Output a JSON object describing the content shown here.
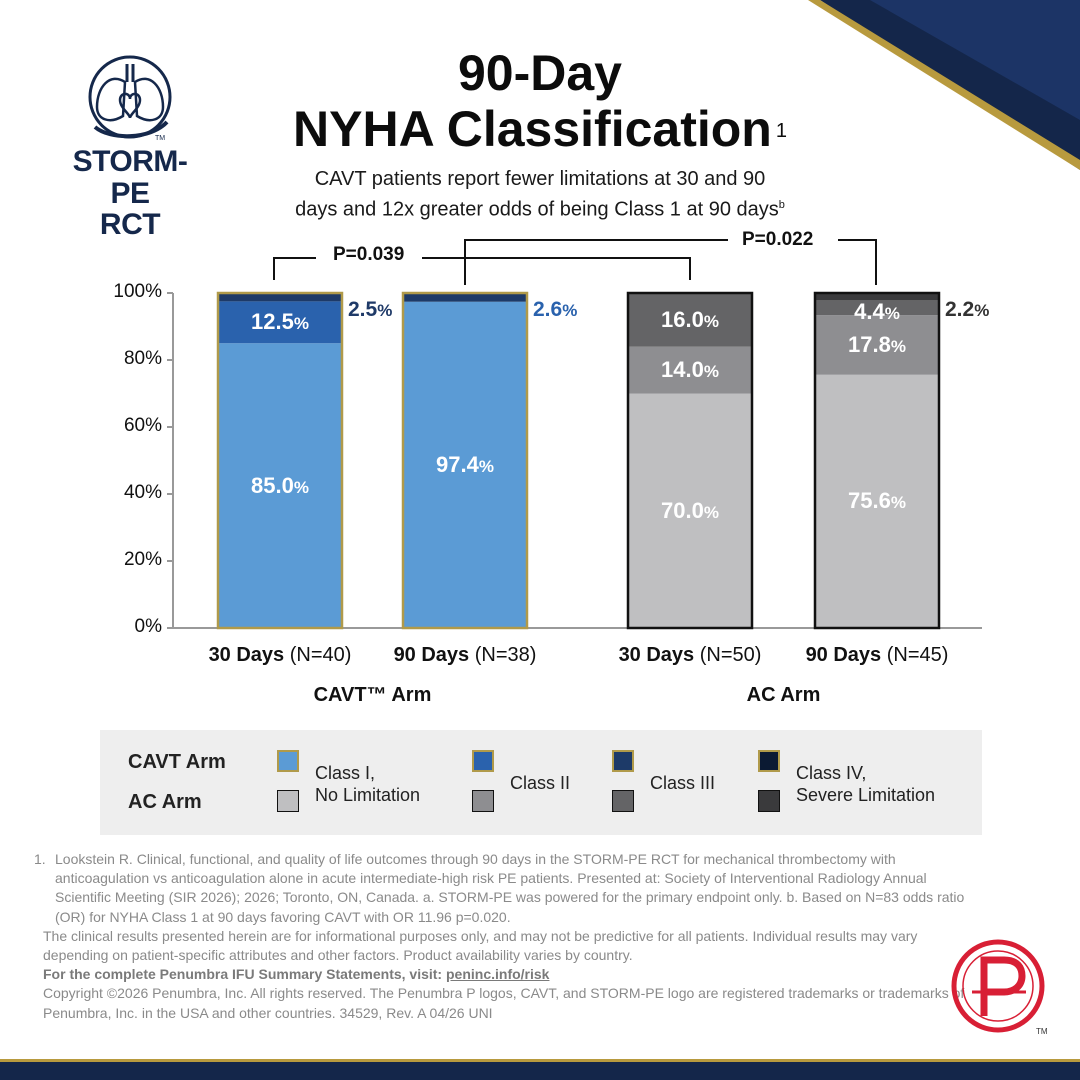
{
  "header": {
    "logo_line1": "STORM-PE",
    "logo_line2": "RCT",
    "logo_tm": "TM",
    "title_line1": "90-Day",
    "title_line2": "NYHA Classification",
    "title_ref": "1",
    "subtitle_line1": "CAVT patients report fewer limitations at 30 and 90",
    "subtitle_line2": "days and 12x greater odds of being Class 1 at 90 days",
    "subtitle_ref": "b"
  },
  "pvalues": {
    "left": "P=0.039",
    "right": "P=0.022"
  },
  "colors": {
    "cavt_class1": "#5b9bd5",
    "cavt_class2": "#2a62ad",
    "cavt_class3": "#1d3a68",
    "cavt_class4": "#0b1a33",
    "cavt_border": "#b09a4a",
    "ac_class1": "#bfbfc1",
    "ac_class2": "#8e8e91",
    "ac_class3": "#646466",
    "ac_class4": "#3a3a3c",
    "ac_border": "#111111",
    "navy": "#14264a",
    "gold": "#b89a3e",
    "penumbra_red": "#d81f35"
  },
  "chart_data": {
    "type": "bar",
    "stacked": true,
    "ylim": [
      0,
      100
    ],
    "yticks": [
      "0%",
      "20%",
      "40%",
      "60%",
      "80%",
      "100%"
    ],
    "categories": [
      "30 Days (N=40)",
      "90 Days (N=38)",
      "30 Days (N=50)",
      "90 Days (N=45)"
    ],
    "category_parts": [
      {
        "bold": "30 Days",
        "rest": " (N=40)"
      },
      {
        "bold": "90 Days",
        "rest": " (N=38)"
      },
      {
        "bold": "30 Days",
        "rest": " (N=50)"
      },
      {
        "bold": "90 Days",
        "rest": " (N=45)"
      }
    ],
    "groups": [
      "CAVT™ Arm",
      "AC Arm"
    ],
    "bars": [
      {
        "arm": "CAVT",
        "segments": [
          85.0,
          12.5,
          2.5,
          0
        ],
        "labels": [
          "85.0",
          "12.5",
          "2.5"
        ]
      },
      {
        "arm": "CAVT",
        "segments": [
          97.4,
          0,
          2.6,
          0
        ],
        "labels": [
          "97.4",
          "2.6"
        ]
      },
      {
        "arm": "AC",
        "segments": [
          70.0,
          14.0,
          16.0,
          0
        ],
        "labels": [
          "70.0",
          "14.0",
          "16.0"
        ]
      },
      {
        "arm": "AC",
        "segments": [
          75.6,
          17.8,
          4.4,
          2.2
        ],
        "labels": [
          "75.6",
          "17.8",
          "4.4",
          "2.2"
        ]
      }
    ],
    "series": [
      {
        "name": "Class I, No Limitation"
      },
      {
        "name": "Class II"
      },
      {
        "name": "Class III"
      },
      {
        "name": "Class IV, Severe Limitation"
      }
    ],
    "percent_sign": "%"
  },
  "legend": {
    "row1": "CAVT Arm",
    "row2": "AC Arm",
    "items": [
      {
        "line1": "Class I,",
        "line2": "No Limitation"
      },
      {
        "line1": "Class II",
        "line2": ""
      },
      {
        "line1": "Class III",
        "line2": ""
      },
      {
        "line1": "Class IV,",
        "line2": "Severe Limitation"
      }
    ]
  },
  "footnotes": {
    "ref_num": "1.",
    "ref_text": "Lookstein R. Clinical, functional, and quality of life outcomes through 90 days in the STORM-PE RCT for mechanical thrombectomy with anticoagulation vs anticoagulation alone in acute intermediate-high risk PE patients. Presented at: Society of Interventional Radiology Annual Scientific Meeting (SIR 2026); 2026; Toronto, ON, Canada. a. STORM-PE was powered for the primary endpoint only. b. Based on N=83 odds ratio (OR) for NYHA Class 1 at 90 days favoring CAVT with OR 11.96 p=0.020.",
    "disclaimer": "The clinical results presented herein are for informational purposes only, and may not be predictive for all patients. Individual results may vary depending on patient-specific attributes and other factors. Product availability varies by country.",
    "ifu_text": "For the complete Penumbra IFU Summary Statements, visit: ",
    "ifu_link": "peninc.info/risk",
    "copyright": "Copyright ©2026 Penumbra, Inc. All rights reserved. The Penumbra P logos, CAVT, and STORM-PE logo are registered trademarks or trademarks of Penumbra, Inc. in the USA and other countries. 34529, Rev. A 04/26 UNI"
  },
  "badge": {
    "tm": "TM"
  }
}
